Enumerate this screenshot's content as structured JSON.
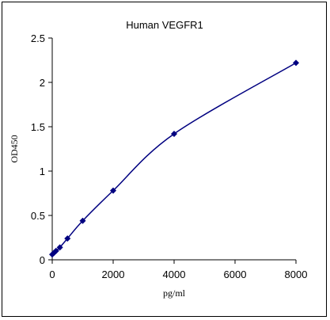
{
  "chart_data": {
    "type": "line",
    "title": "Human  VEGFR1",
    "xlabel": "pg/ml",
    "ylabel": "OD450",
    "xlim": [
      0,
      8000
    ],
    "ylim": [
      0,
      2.5
    ],
    "x_ticks": [
      "0",
      "2000",
      "4000",
      "6000",
      "8000"
    ],
    "y_ticks": [
      "0",
      "0.5",
      "1",
      "1.5",
      "2",
      "2.5"
    ],
    "grid": false,
    "legend": "none",
    "series": [
      {
        "x": [
          0,
          62.5,
          125,
          250,
          500,
          1000,
          2000,
          4000,
          8000
        ],
        "y": [
          0.06,
          0.08,
          0.1,
          0.14,
          0.24,
          0.44,
          0.78,
          1.42,
          2.22
        ],
        "color": "#000080",
        "marker": "diamond",
        "smooth": true
      }
    ]
  }
}
